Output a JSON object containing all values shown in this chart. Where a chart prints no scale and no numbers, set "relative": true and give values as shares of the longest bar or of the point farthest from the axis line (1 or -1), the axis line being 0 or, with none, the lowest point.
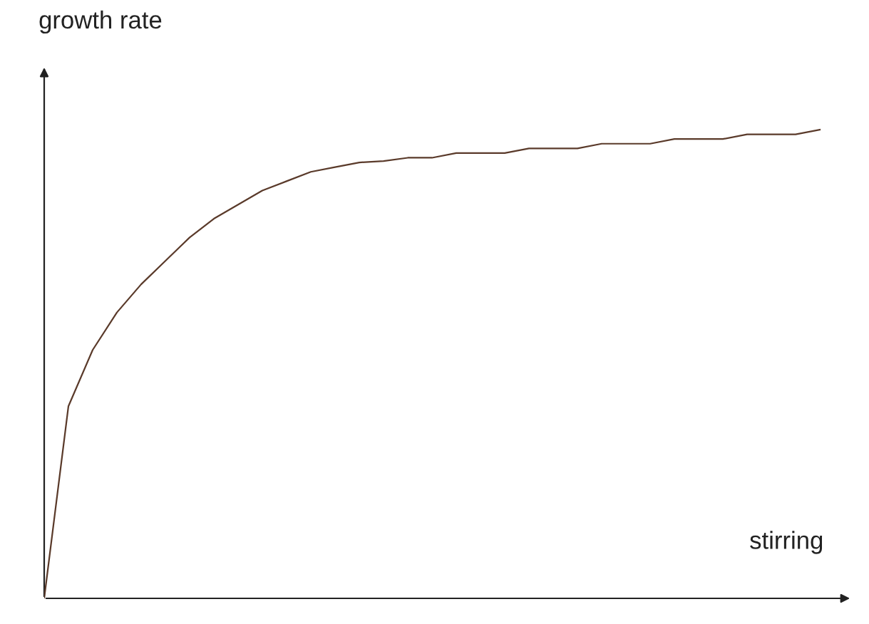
{
  "chart_data": {
    "type": "line",
    "relative": true,
    "xlabel": "stirring",
    "ylabel": "growth rate",
    "color": "#5a3a2a",
    "marker": "none",
    "line_style": "solid",
    "legend": false,
    "categories": [
      null,
      null,
      null,
      null,
      null,
      null,
      null,
      null,
      null,
      null,
      null,
      null,
      null,
      null,
      null,
      null,
      null,
      null,
      null,
      null,
      null,
      null,
      null,
      null,
      null,
      null,
      null,
      null,
      null,
      null,
      null,
      null,
      null
    ],
    "values": [
      0,
      0.41,
      0.53,
      0.61,
      0.67,
      0.72,
      0.77,
      0.81,
      0.84,
      0.87,
      0.89,
      0.91,
      0.92,
      0.93,
      0.933,
      0.94,
      0.94,
      0.95,
      0.95,
      0.95,
      0.96,
      0.96,
      0.96,
      0.97,
      0.97,
      0.97,
      0.98,
      0.98,
      0.98,
      0.99,
      0.99,
      0.99,
      1.0
    ]
  }
}
